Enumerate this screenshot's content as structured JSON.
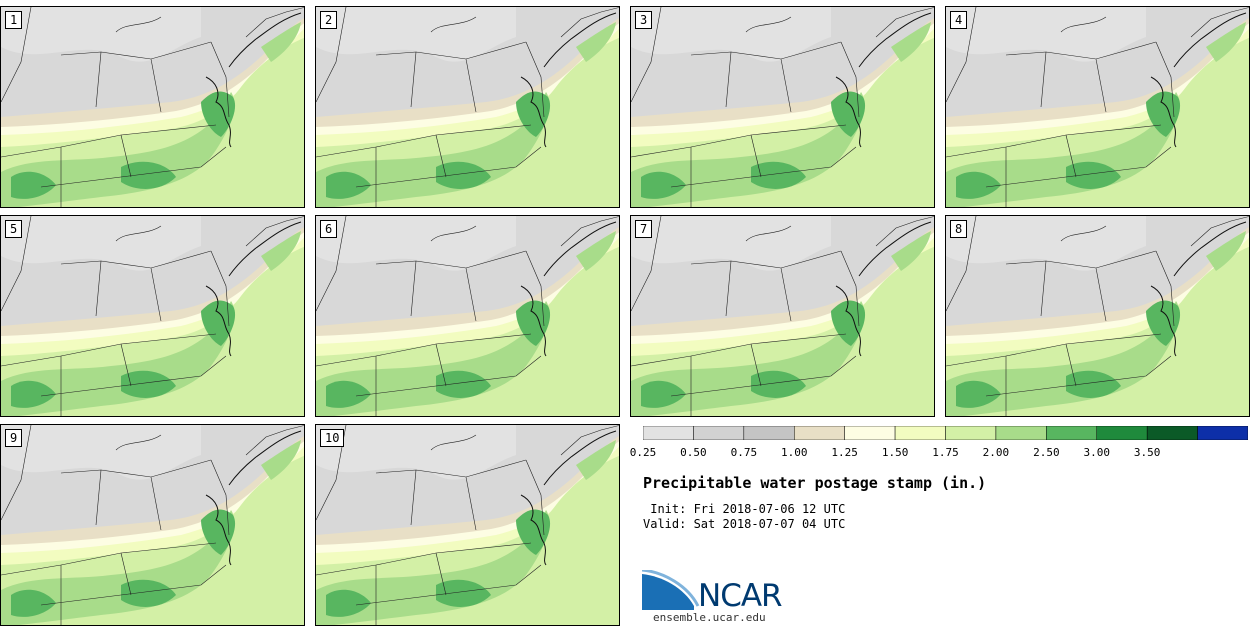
{
  "panels": [
    {
      "label": "1"
    },
    {
      "label": "2"
    },
    {
      "label": "3"
    },
    {
      "label": "4"
    },
    {
      "label": "5"
    },
    {
      "label": "6"
    },
    {
      "label": "7"
    },
    {
      "label": "8"
    },
    {
      "label": "9"
    },
    {
      "label": "10"
    }
  ],
  "legend": {
    "ticks": [
      "0.25",
      "0.50",
      "0.75",
      "1.00",
      "1.25",
      "1.50",
      "1.75",
      "2.00",
      "2.50",
      "3.00",
      "3.50"
    ],
    "colors": [
      "#e2e2e2",
      "#d2d2d2",
      "#c4c4c4",
      "#e8dfc6",
      "#fdfde3",
      "#f2fcc0",
      "#d3f0a6",
      "#a8dc8a",
      "#58b660",
      "#1f8a3c",
      "#0b5a27",
      "#0d2fa8"
    ]
  },
  "title": "Precipitable water postage stamp (in.)",
  "init_line": " Init: Fri 2018-07-06 12 UTC",
  "valid_line": "Valid: Sat 2018-07-07 04 UTC",
  "logo": {
    "text": "NCAR",
    "url": "ensemble.ucar.edu"
  }
}
